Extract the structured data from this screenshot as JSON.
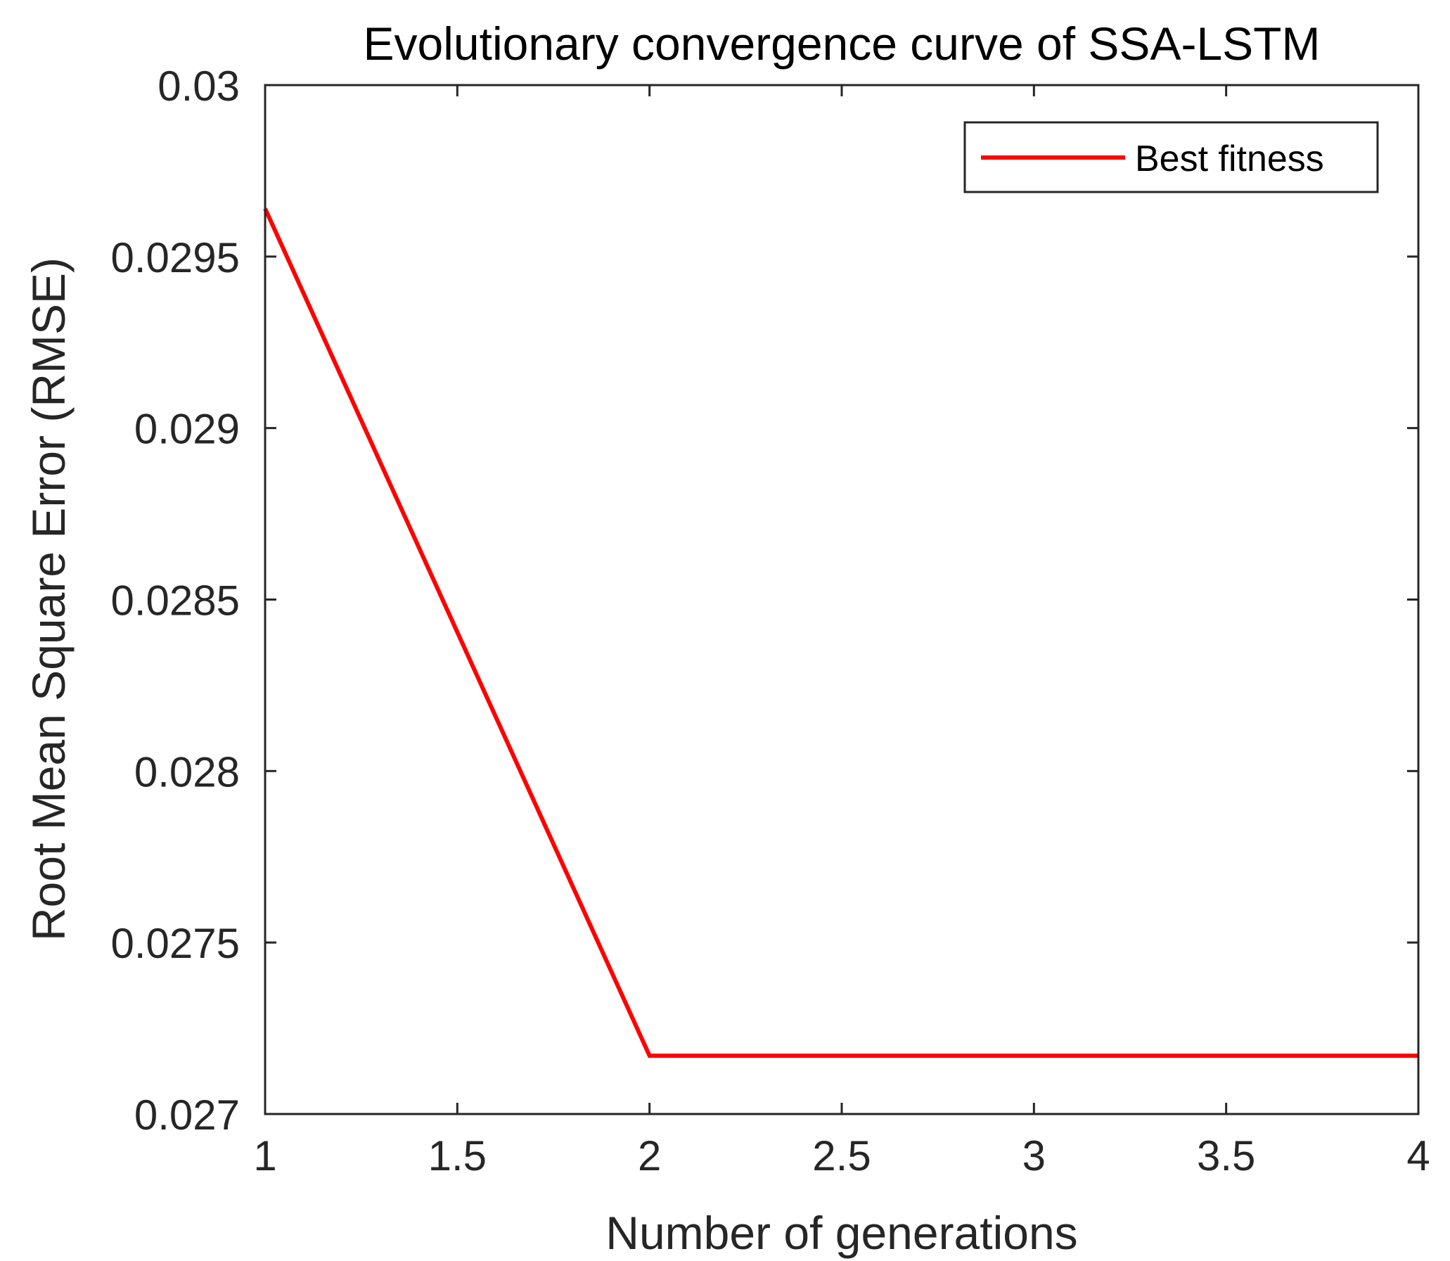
{
  "chart_data": {
    "type": "line",
    "title": "Evolutionary convergence curve of SSA-LSTM",
    "xlabel": "Number of generations",
    "ylabel": "Root Mean Square Error (RMSE)",
    "xlim": [
      1,
      4
    ],
    "ylim": [
      0.027,
      0.03
    ],
    "x_ticks": [
      1,
      1.5,
      2,
      2.5,
      3,
      3.5,
      4
    ],
    "x_tick_labels": [
      "1",
      "1.5",
      "2",
      "2.5",
      "3",
      "3.5",
      "4"
    ],
    "y_ticks": [
      0.027,
      0.0275,
      0.028,
      0.0285,
      0.029,
      0.0295,
      0.03
    ],
    "y_tick_labels": [
      "0.027",
      "0.0275",
      "0.028",
      "0.0285",
      "0.029",
      "0.0295",
      "0.03"
    ],
    "grid": false,
    "legend_position": "top-right",
    "series": [
      {
        "name": "Best fitness",
        "color": "#ff0000",
        "x": [
          1,
          2,
          3,
          4
        ],
        "y": [
          0.02964,
          0.02717,
          0.02717,
          0.02717
        ]
      }
    ]
  }
}
